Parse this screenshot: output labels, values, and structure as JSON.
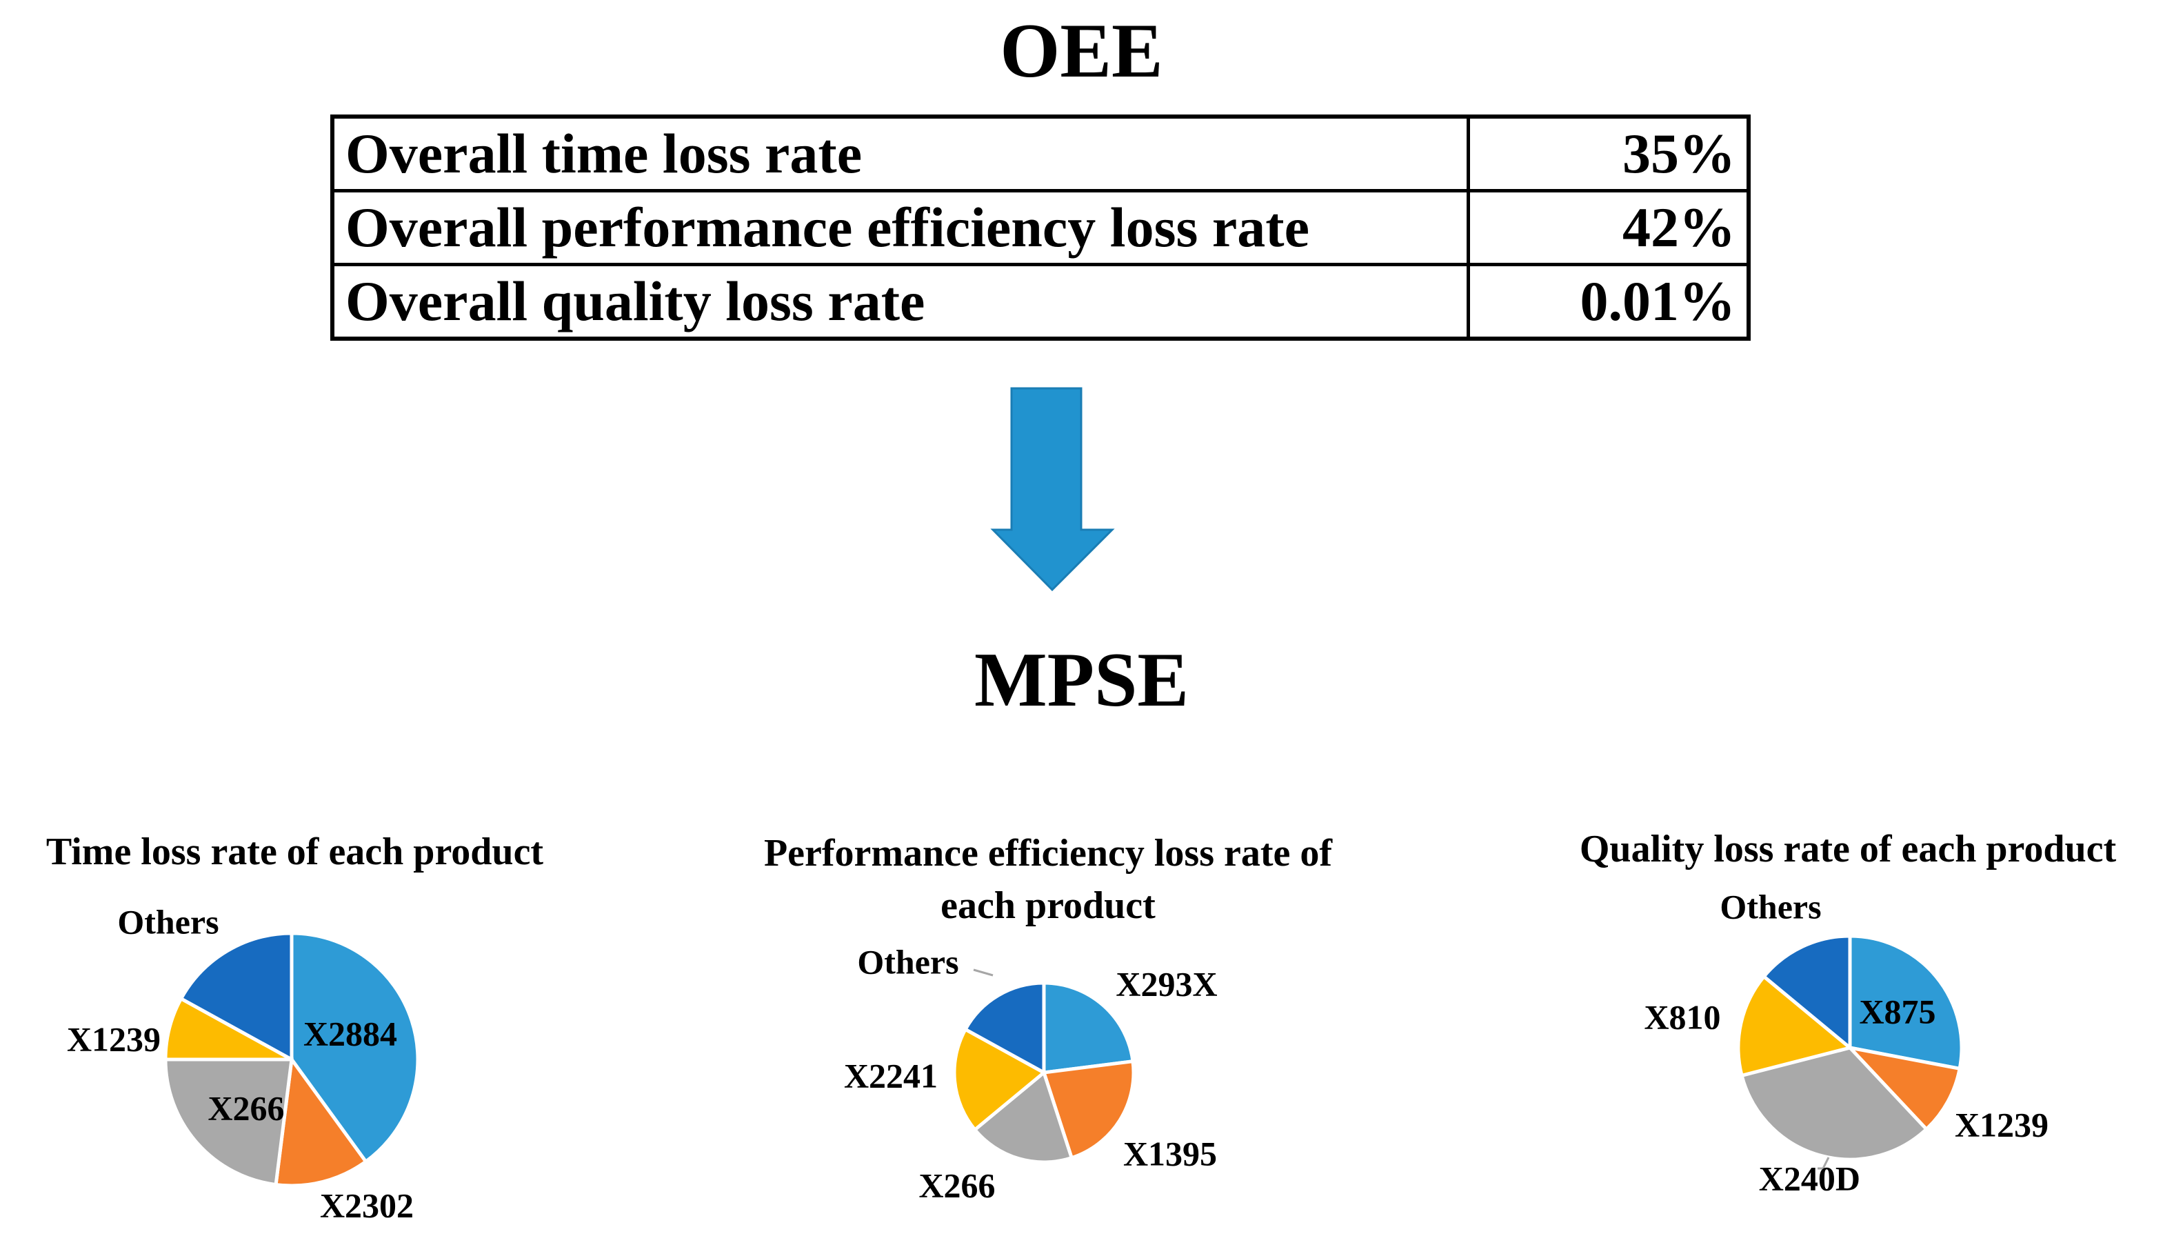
{
  "oee": {
    "title": "OEE",
    "rows": [
      {
        "label": "Overall time loss rate",
        "value": "35%"
      },
      {
        "label": "Overall performance efficiency loss rate",
        "value": "42%"
      },
      {
        "label": "Overall quality loss rate",
        "value": "0.01%"
      }
    ]
  },
  "mpse": {
    "title": "MPSE"
  },
  "colors": {
    "arrow": "#2193CF",
    "blue": "#2E9BD6",
    "orange": "#F57F2A",
    "gray": "#A9A9A9",
    "yellow": "#FDBB00",
    "darkblue": "#176BC0"
  },
  "chart_data": [
    {
      "type": "pie",
      "title": "Time loss rate of each product",
      "labels": [
        "X2884",
        "X2302",
        "X266",
        "X1239",
        "Others"
      ],
      "values": [
        40,
        12,
        23,
        8,
        17
      ],
      "colors": [
        "#2E9BD6",
        "#F57F2A",
        "#A9A9A9",
        "#FDBB00",
        "#176BC0"
      ]
    },
    {
      "type": "pie",
      "title_lines": [
        "Performance efficiency loss rate of",
        "each product"
      ],
      "labels": [
        "X293X",
        "X1395",
        "X266",
        "X2241",
        "Others"
      ],
      "values": [
        23,
        22,
        19,
        19,
        17
      ],
      "colors": [
        "#2E9BD6",
        "#F57F2A",
        "#A9A9A9",
        "#FDBB00",
        "#176BC0"
      ]
    },
    {
      "type": "pie",
      "title": "Quality loss rate of each product",
      "labels": [
        "X875",
        "X1239",
        "X240D",
        "X810",
        "Others"
      ],
      "values": [
        28,
        10,
        33,
        15,
        14
      ],
      "colors": [
        "#2E9BD6",
        "#F57F2A",
        "#A9A9A9",
        "#FDBB00",
        "#176BC0"
      ]
    }
  ]
}
